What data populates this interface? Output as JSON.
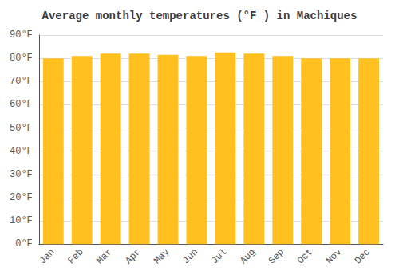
{
  "chart_data": {
    "type": "bar",
    "title": "Average monthly temperatures (°F ) in Machiques",
    "categories": [
      "Jan",
      "Feb",
      "Mar",
      "Apr",
      "May",
      "Jun",
      "Jul",
      "Aug",
      "Sep",
      "Oct",
      "Nov",
      "Dec"
    ],
    "values": [
      80.0,
      81.0,
      82.0,
      82.0,
      81.5,
      81.0,
      82.5,
      82.0,
      81.0,
      80.0,
      80.0,
      80.0
    ],
    "color": "#FFC020",
    "ylim": [
      0,
      90
    ],
    "yticks": [
      {
        "value": 0,
        "label": "0°F"
      },
      {
        "value": 10,
        "label": "10°F"
      },
      {
        "value": 20,
        "label": "20°F"
      },
      {
        "value": 30,
        "label": "30°F"
      },
      {
        "value": 40,
        "label": "40°F"
      },
      {
        "value": 50,
        "label": "50°F"
      },
      {
        "value": 60,
        "label": "60°F"
      },
      {
        "value": 70,
        "label": "70°F"
      },
      {
        "value": 80,
        "label": "80°F"
      },
      {
        "value": 90,
        "label": "90°F"
      }
    ],
    "grid": true
  }
}
